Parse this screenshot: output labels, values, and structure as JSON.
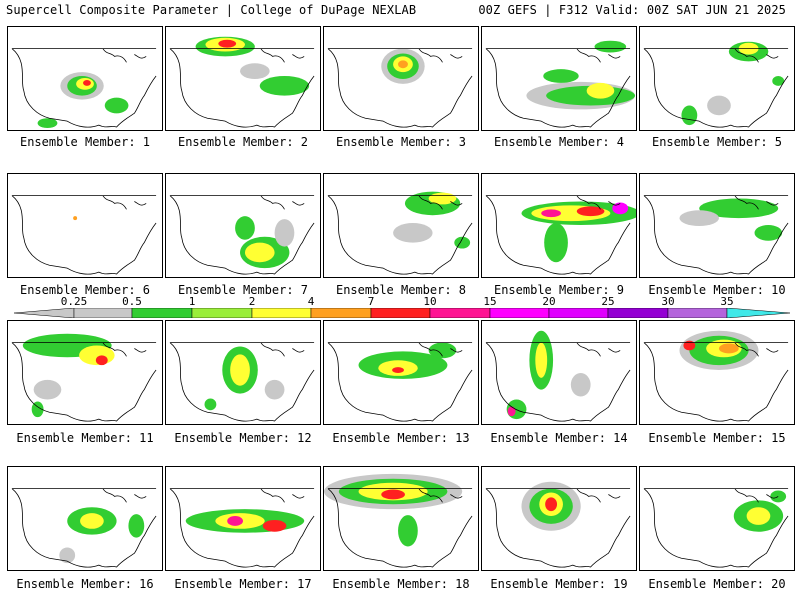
{
  "header": {
    "left": "Supercell Composite Parameter | College of DuPage NEXLAB",
    "right": "00Z GEFS | F312 Valid: 00Z SAT JUN 21 2025"
  },
  "colorbar": {
    "ticks": [
      "0.25",
      "0.5",
      "1",
      "2",
      "4",
      "7",
      "10",
      "15",
      "20",
      "25",
      "30",
      "35"
    ],
    "colors": [
      "#c8c8c8",
      "#32cd32",
      "#9aee3a",
      "#ffff33",
      "#ffa020",
      "#ff2020",
      "#ff1493",
      "#ff00ff",
      "#e000ff",
      "#9400d3",
      "#b464dc",
      "#40e8e8"
    ]
  },
  "members": [
    {
      "label": "Ensemble Member: 1"
    },
    {
      "label": "Ensemble Member: 2"
    },
    {
      "label": "Ensemble Member: 3"
    },
    {
      "label": "Ensemble Member: 4"
    },
    {
      "label": "Ensemble Member: 5"
    },
    {
      "label": "Ensemble Member: 6"
    },
    {
      "label": "Ensemble Member: 7"
    },
    {
      "label": "Ensemble Member: 8"
    },
    {
      "label": "Ensemble Member: 9"
    },
    {
      "label": "Ensemble Member: 10"
    },
    {
      "label": "Ensemble Member: 11"
    },
    {
      "label": "Ensemble Member: 12"
    },
    {
      "label": "Ensemble Member: 13"
    },
    {
      "label": "Ensemble Member: 14"
    },
    {
      "label": "Ensemble Member: 15"
    },
    {
      "label": "Ensemble Member: 16"
    },
    {
      "label": "Ensemble Member: 17"
    },
    {
      "label": "Ensemble Member: 18"
    },
    {
      "label": "Ensemble Member: 19"
    },
    {
      "label": "Ensemble Member: 20"
    }
  ]
}
